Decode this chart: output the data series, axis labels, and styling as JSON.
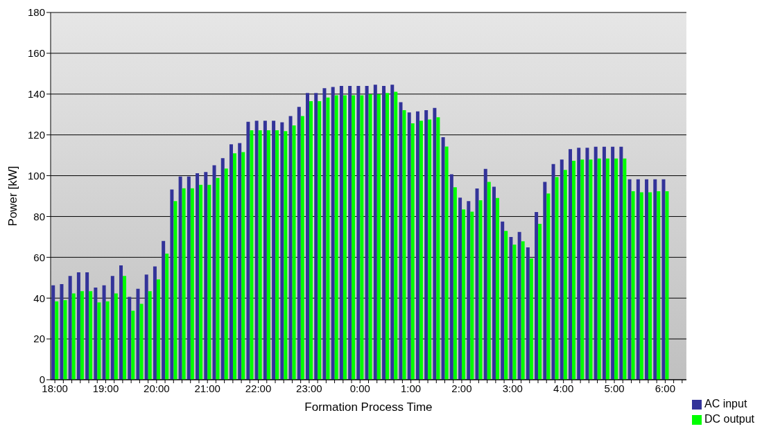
{
  "chart_data": {
    "type": "bar",
    "xlabel": "Formation Process Time",
    "ylabel": "Power [kW]",
    "categories": [
      "18:00",
      null,
      null,
      null,
      null,
      null,
      "19:00",
      null,
      null,
      null,
      null,
      null,
      "20:00",
      null,
      null,
      null,
      null,
      null,
      "21:00",
      null,
      null,
      null,
      null,
      null,
      "22:00",
      null,
      null,
      null,
      null,
      null,
      "23:00",
      null,
      null,
      null,
      null,
      null,
      "0:00",
      null,
      null,
      null,
      null,
      null,
      "1:00",
      null,
      null,
      null,
      null,
      null,
      "2:00",
      null,
      null,
      null,
      null,
      null,
      "3:00",
      null,
      null,
      null,
      null,
      null,
      "4:00",
      null,
      null,
      null,
      null,
      null,
      "5:00",
      null,
      null,
      null,
      null,
      null,
      "6:00",
      null,
      null
    ],
    "series": [
      {
        "name": "AC input",
        "color": "#333399",
        "values": [
          46.3,
          46.9,
          50.9,
          52.6,
          52.6,
          45.2,
          46.3,
          50.9,
          56,
          40.6,
          44.6,
          51.5,
          55.5,
          68,
          93.2,
          99.6,
          99.6,
          101.2,
          101.8,
          105.1,
          108.6,
          115.4,
          116,
          126.4,
          126.9,
          126.9,
          126.9,
          126.2,
          129.2,
          133.7,
          140.5,
          140.5,
          142.9,
          143.5,
          144,
          144,
          144,
          144,
          144.6,
          144,
          144.6,
          136,
          131,
          131.5,
          132.1,
          133.2,
          118.9,
          100.7,
          89.2,
          87.5,
          93.7,
          103.3,
          94.6,
          77.5,
          70,
          72.4,
          64.9,
          82.2,
          97,
          105.7,
          107.9,
          113,
          113.7,
          113.7,
          114.2,
          114.2,
          114.2,
          114.2,
          98.2,
          98.2,
          98.2,
          98.2,
          98.2,
          null,
          null
        ]
      },
      {
        "name": "DC output",
        "color": "#00ff00",
        "values": [
          38.4,
          39,
          42.3,
          43.4,
          43.4,
          37.9,
          38.4,
          42.3,
          50.9,
          33.8,
          37.2,
          43.4,
          49.2,
          61.8,
          87.5,
          93.8,
          93.8,
          95.5,
          95.5,
          98.9,
          103.5,
          111,
          111.6,
          122.3,
          122.3,
          122.3,
          122.3,
          121.8,
          124.6,
          129.2,
          136.5,
          136.5,
          138.3,
          139.4,
          139.4,
          139.4,
          139.4,
          139.9,
          139.9,
          140.5,
          141.1,
          132.1,
          125.7,
          126.9,
          127.5,
          128.6,
          114.3,
          94.3,
          83.5,
          82.4,
          88,
          97,
          89.1,
          72.9,
          66.2,
          67.8,
          59.4,
          76.4,
          91.3,
          99.3,
          102.8,
          107.3,
          107.9,
          107.9,
          108.4,
          108.4,
          108.4,
          108.4,
          92.4,
          91.9,
          91.9,
          92.4,
          92.4,
          null,
          null
        ]
      }
    ],
    "ylim": [
      0,
      180
    ],
    "yticks": [
      0,
      20,
      40,
      60,
      80,
      100,
      120,
      140,
      160,
      180
    ],
    "grid": "y",
    "legend": "bottom right"
  }
}
